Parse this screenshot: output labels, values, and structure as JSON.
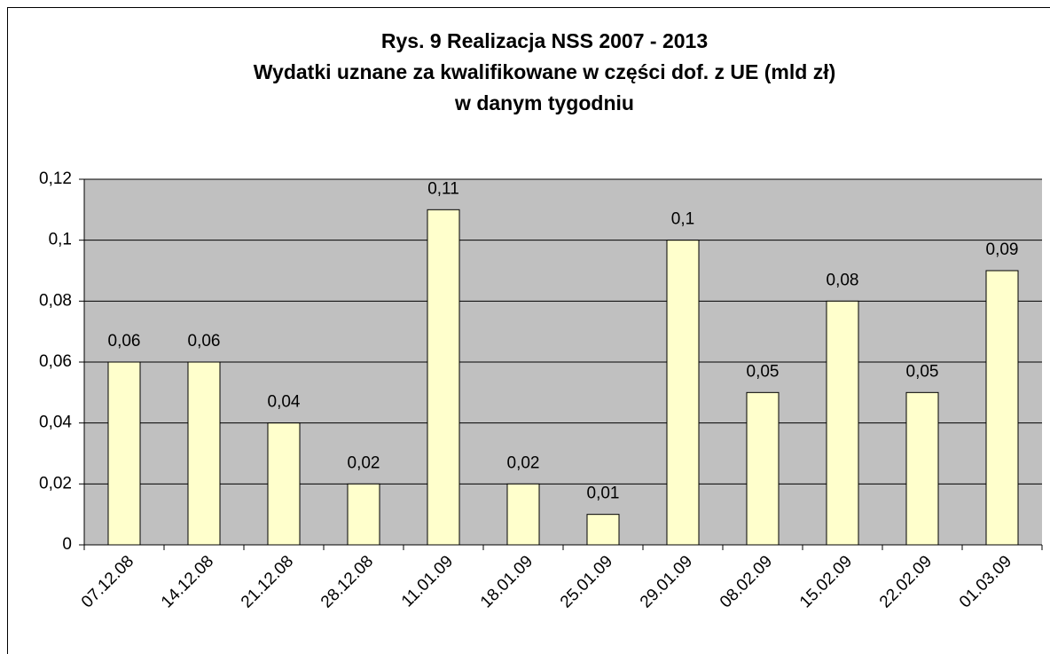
{
  "chart_data": {
    "type": "bar",
    "title": [
      "Rys. 9 Realizacja NSS 2007 - 2013",
      "Wydatki uznane za kwalifikowane w części dof. z UE (mld zł)",
      "w danym tygodniu"
    ],
    "categories": [
      "07.12.08",
      "14.12.08",
      "21.12.08",
      "28.12.08",
      "11.01.09",
      "18.01.09",
      "25.01.09",
      "29.01.09",
      "08.02.09",
      "15.02.09",
      "22.02.09",
      "01.03.09"
    ],
    "values": [
      0.06,
      0.06,
      0.04,
      0.02,
      0.11,
      0.02,
      0.01,
      0.1,
      0.05,
      0.08,
      0.05,
      0.09
    ],
    "value_labels": [
      "0,06",
      "0,06",
      "0,04",
      "0,02",
      "0,11",
      "0,02",
      "0,01",
      "0,1",
      "0,05",
      "0,08",
      "0,05",
      "0,09"
    ],
    "color": "#ffffcc",
    "ylim": [
      0,
      0.12
    ],
    "yticks": [
      0,
      {
        "value": 0.02,
        "label": "0,02"
      },
      {
        "value": 0.04,
        "label": "0,04"
      },
      {
        "value": 0.06,
        "label": "0,06"
      },
      {
        "value": 0.08,
        "label": "0,08"
      },
      {
        "value": 0.1,
        "label": "0,1"
      },
      {
        "value": 0.12,
        "label": "0,12"
      }
    ],
    "grid": true
  }
}
